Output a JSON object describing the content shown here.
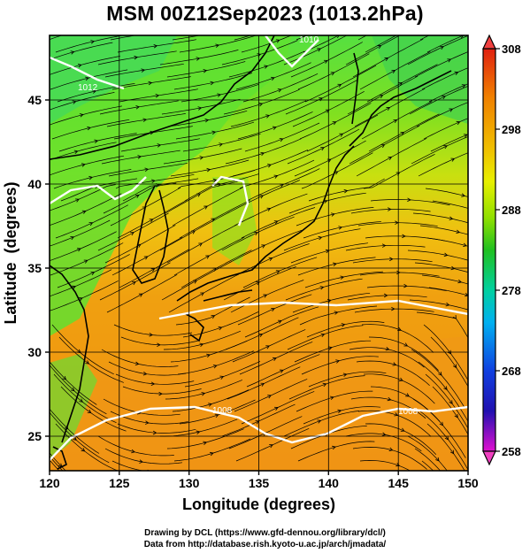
{
  "title": "MSM 00Z12Sep2023 (1013.2hPa)",
  "x_axis": {
    "label": "Longitude (degrees)",
    "ticks": [
      "120",
      "125",
      "130",
      "135",
      "140",
      "145",
      "150"
    ],
    "range": [
      120,
      150
    ]
  },
  "y_axis": {
    "label": "Latitude  (degrees)",
    "ticks": [
      "25",
      "30",
      "35",
      "40",
      "45"
    ],
    "range": [
      22.4,
      47.6
    ]
  },
  "colorbar": {
    "ticks": [
      "308",
      "298",
      "288",
      "278",
      "268",
      "258"
    ],
    "range": [
      258,
      308
    ],
    "colors": [
      "#e01070",
      "#1010d0",
      "#00b0f0",
      "#00d080",
      "#20c020",
      "#90e000",
      "#f0f000",
      "#f0b000",
      "#f08000",
      "#e02000"
    ]
  },
  "contour_labels": [
    "1012",
    "1010",
    "1008",
    "1008"
  ],
  "credits": {
    "line1": "Drawing by DCL (https://www.gfd-dennou.org/library/dcl/)",
    "line2": "Data from http://database.rish.kyoto-u.ac.jp/arch/jmadata/"
  }
}
